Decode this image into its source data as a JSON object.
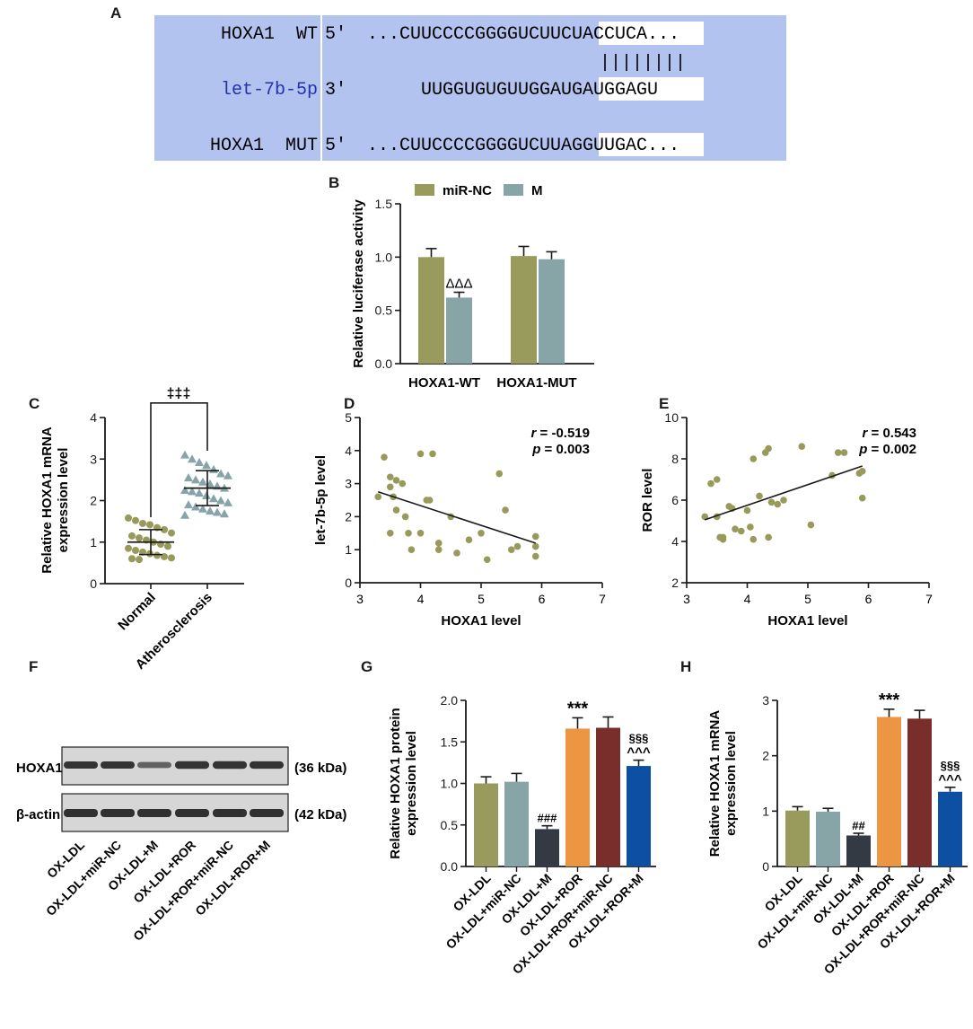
{
  "panels": {
    "A": "A",
    "B": "B",
    "C": "C",
    "D": "D",
    "E": "E",
    "F": "F",
    "G": "G",
    "H": "H"
  },
  "panel_a": {
    "rows": [
      {
        "label": "HOXA1  WT",
        "prime": "5'",
        "seq_plain": "...CUUCCCCGGGGUCUU",
        "seq_box": "CUACCUCA",
        "seq_tail": "..."
      },
      {
        "label": "let-7b-5p",
        "prime": "3'",
        "seq_plain": "UUGGUGUGUUGGAU",
        "seq_box": "GAUGGAGU",
        "seq_tail": ""
      },
      {
        "label": "HOXA1  MUT",
        "prime": "5'",
        "seq_plain": "...CUUCCCCGGGGUCUU",
        "seq_box": "AGGUUGAC",
        "seq_tail": "..."
      }
    ],
    "pairing": "||||||||",
    "colors": {
      "background": "#b3c3f0",
      "mirna_label": "#2233aa",
      "box": "#ffffff"
    }
  },
  "panel_f": {
    "bands": [
      {
        "label": "HOXA1",
        "size": "(36 kDa)"
      },
      {
        "label": "β-actin",
        "size": "(42 kDa)"
      }
    ],
    "lanes": [
      "OX-LDL",
      "OX-LDL+miR-NC",
      "OX-LDL+M",
      "OX-LDL+ROR",
      "OX-LDL+ROR+miR-NC",
      "OX-LDL+ROR+M"
    ]
  },
  "chart_data": [
    {
      "id": "B",
      "type": "bar",
      "ylabel": "Relative luciferase activity",
      "ylim": [
        0,
        1.5
      ],
      "yticks": [
        "0.0",
        "0.5",
        "1.0",
        "1.5"
      ],
      "categories": [
        "HOXA1-WT",
        "HOXA1-MUT"
      ],
      "series": [
        {
          "name": "miR-NC",
          "values": [
            1.0,
            1.01
          ],
          "errors": [
            0.08,
            0.09
          ],
          "color": "#989b5b"
        },
        {
          "name": "M",
          "values": [
            0.62,
            0.98
          ],
          "errors": [
            0.05,
            0.07
          ],
          "color": "#87a4a6"
        }
      ],
      "annotations": [
        {
          "category": 0,
          "series": 1,
          "text": "ΔΔΔ"
        }
      ],
      "legend": "top"
    },
    {
      "id": "C",
      "type": "scatter",
      "ylabel": [
        "Relative HOXA1 mRNA",
        "expression level"
      ],
      "ylim": [
        0,
        4
      ],
      "yticks": [
        "0",
        "1",
        "2",
        "3",
        "4"
      ],
      "categories": [
        "Normal",
        "Atherosclerosis"
      ],
      "groups": [
        {
          "name": "Normal",
          "marker": "circle",
          "color": "#979a59",
          "mean": 1.0,
          "sd": 0.3,
          "values": [
            1.58,
            1.52,
            1.45,
            1.42,
            1.35,
            1.3,
            1.22,
            1.15,
            1.1,
            1.05,
            1.0,
            0.95,
            0.9,
            0.85,
            0.8,
            0.76,
            0.72,
            0.68,
            0.65,
            0.62,
            0.6,
            0.58
          ]
        },
        {
          "name": "Atherosclerosis",
          "marker": "triangle",
          "color": "#87a5a8",
          "mean": 2.3,
          "sd": 0.42,
          "values": [
            3.1,
            3.0,
            2.92,
            2.85,
            2.75,
            2.65,
            2.6,
            2.55,
            2.5,
            2.45,
            2.4,
            2.35,
            2.3,
            2.25,
            2.22,
            2.18,
            2.12,
            2.05,
            2.0,
            1.95,
            1.9,
            1.85,
            1.8,
            1.75,
            1.72,
            1.68,
            1.65
          ]
        }
      ],
      "significance": "‡‡‡"
    },
    {
      "id": "D",
      "type": "scatter",
      "xlabel": "HOXA1 level",
      "ylabel": "let-7b-5p level",
      "xlim": [
        3,
        7
      ],
      "ylim": [
        0,
        5
      ],
      "xticks": [
        "3",
        "4",
        "5",
        "6",
        "7"
      ],
      "yticks": [
        "0",
        "1",
        "2",
        "3",
        "4",
        "5"
      ],
      "r_label": "r",
      "r_value": " = -0.519",
      "p_label": "p",
      "p_value": " = 0.003",
      "color": "#979a59",
      "regression": {
        "x": [
          3.3,
          5.9
        ],
        "y": [
          2.75,
          1.2
        ]
      },
      "points": [
        [
          3.3,
          2.6
        ],
        [
          3.4,
          3.8
        ],
        [
          3.5,
          3.2
        ],
        [
          3.5,
          2.9
        ],
        [
          3.55,
          2.6
        ],
        [
          3.6,
          3.1
        ],
        [
          3.7,
          3.0
        ],
        [
          3.6,
          2.2
        ],
        [
          3.5,
          1.5
        ],
        [
          3.75,
          2.0
        ],
        [
          3.8,
          1.5
        ],
        [
          3.85,
          1.0
        ],
        [
          4.0,
          3.9
        ],
        [
          4.2,
          3.9
        ],
        [
          4.1,
          2.5
        ],
        [
          4.15,
          2.5
        ],
        [
          4.0,
          1.5
        ],
        [
          4.3,
          1.2
        ],
        [
          4.3,
          1.0
        ],
        [
          4.5,
          2.0
        ],
        [
          4.6,
          0.9
        ],
        [
          4.8,
          1.3
        ],
        [
          5.0,
          1.5
        ],
        [
          5.1,
          0.7
        ],
        [
          5.3,
          3.3
        ],
        [
          5.4,
          2.2
        ],
        [
          5.5,
          1.0
        ],
        [
          5.6,
          1.1
        ],
        [
          5.9,
          1.4
        ],
        [
          5.9,
          1.1
        ],
        [
          5.9,
          0.8
        ]
      ]
    },
    {
      "id": "E",
      "type": "scatter",
      "xlabel": "HOXA1 level",
      "ylabel": "ROR level",
      "xlim": [
        3,
        7
      ],
      "ylim": [
        2,
        10
      ],
      "xticks": [
        "3",
        "4",
        "5",
        "6",
        "7"
      ],
      "yticks": [
        "2",
        "4",
        "6",
        "8",
        "10"
      ],
      "r_label": "r",
      "r_value": " = 0.543",
      "p_label": "p",
      "p_value": " = 0.002",
      "color": "#979a59",
      "regression": {
        "x": [
          3.3,
          5.9
        ],
        "y": [
          5.05,
          7.65
        ]
      },
      "points": [
        [
          3.3,
          5.2
        ],
        [
          3.4,
          6.8
        ],
        [
          3.5,
          7.0
        ],
        [
          3.5,
          5.2
        ],
        [
          3.55,
          4.2
        ],
        [
          3.6,
          4.1
        ],
        [
          3.6,
          4.2
        ],
        [
          3.7,
          5.7
        ],
        [
          3.75,
          5.6
        ],
        [
          3.8,
          4.6
        ],
        [
          3.9,
          4.5
        ],
        [
          4.0,
          5.5
        ],
        [
          4.05,
          4.7
        ],
        [
          4.1,
          8.0
        ],
        [
          4.1,
          4.1
        ],
        [
          4.2,
          6.2
        ],
        [
          4.3,
          8.3
        ],
        [
          4.35,
          8.5
        ],
        [
          4.35,
          4.2
        ],
        [
          4.4,
          5.9
        ],
        [
          4.5,
          5.8
        ],
        [
          4.6,
          6.0
        ],
        [
          4.9,
          8.6
        ],
        [
          5.05,
          4.8
        ],
        [
          5.4,
          7.2
        ],
        [
          5.5,
          8.3
        ],
        [
          5.6,
          8.3
        ],
        [
          5.85,
          7.3
        ],
        [
          5.9,
          6.1
        ],
        [
          5.9,
          7.4
        ]
      ]
    },
    {
      "id": "G",
      "type": "bar",
      "ylabel": [
        "Relative HOXA1 protein",
        "expression level"
      ],
      "ylim": [
        0,
        2.0
      ],
      "yticks": [
        "0.0",
        "0.5",
        "1.0",
        "1.5",
        "2.0"
      ],
      "categories": [
        "OX-LDL",
        "OX-LDL+miR-NC",
        "OX-LDL+M",
        "OX-LDL+ROR",
        "OX-LDL+ROR+miR-NC",
        "OX-LDL+ROR+M"
      ],
      "values": [
        1.0,
        1.02,
        0.45,
        1.66,
        1.67,
        1.21
      ],
      "errors": [
        0.08,
        0.1,
        0.04,
        0.13,
        0.13,
        0.07
      ],
      "colors": [
        "#989b5b",
        "#87a4a6",
        "#333a43",
        "#ec9542",
        "#7a2e2b",
        "#0d4fa2"
      ],
      "annotations": [
        [
          "",
          ""
        ],
        [
          "",
          ""
        ],
        [
          "###",
          ""
        ],
        [
          "***",
          ""
        ],
        [
          "",
          ""
        ],
        [
          "§§§",
          "^^^"
        ]
      ]
    },
    {
      "id": "H",
      "type": "bar",
      "ylabel": [
        "Relative HOXA1 mRNA",
        "expression level"
      ],
      "ylim": [
        0,
        3
      ],
      "yticks": [
        "0",
        "1",
        "2",
        "3"
      ],
      "categories": [
        "OX-LDL",
        "OX-LDL+miR-NC",
        "OX-LDL+M",
        "OX-LDL+ROR",
        "OX-LDL+ROR+miR-NC",
        "OX-LDL+ROR+M"
      ],
      "values": [
        1.01,
        0.99,
        0.56,
        2.7,
        2.67,
        1.35
      ],
      "errors": [
        0.07,
        0.06,
        0.04,
        0.14,
        0.15,
        0.08
      ],
      "colors": [
        "#989b5b",
        "#87a4a6",
        "#333a43",
        "#ec9542",
        "#7a2e2b",
        "#0d4fa2"
      ],
      "annotations": [
        [
          "",
          ""
        ],
        [
          "",
          ""
        ],
        [
          "##",
          ""
        ],
        [
          "***",
          ""
        ],
        [
          "",
          ""
        ],
        [
          "§§§",
          "^^^"
        ]
      ]
    }
  ]
}
